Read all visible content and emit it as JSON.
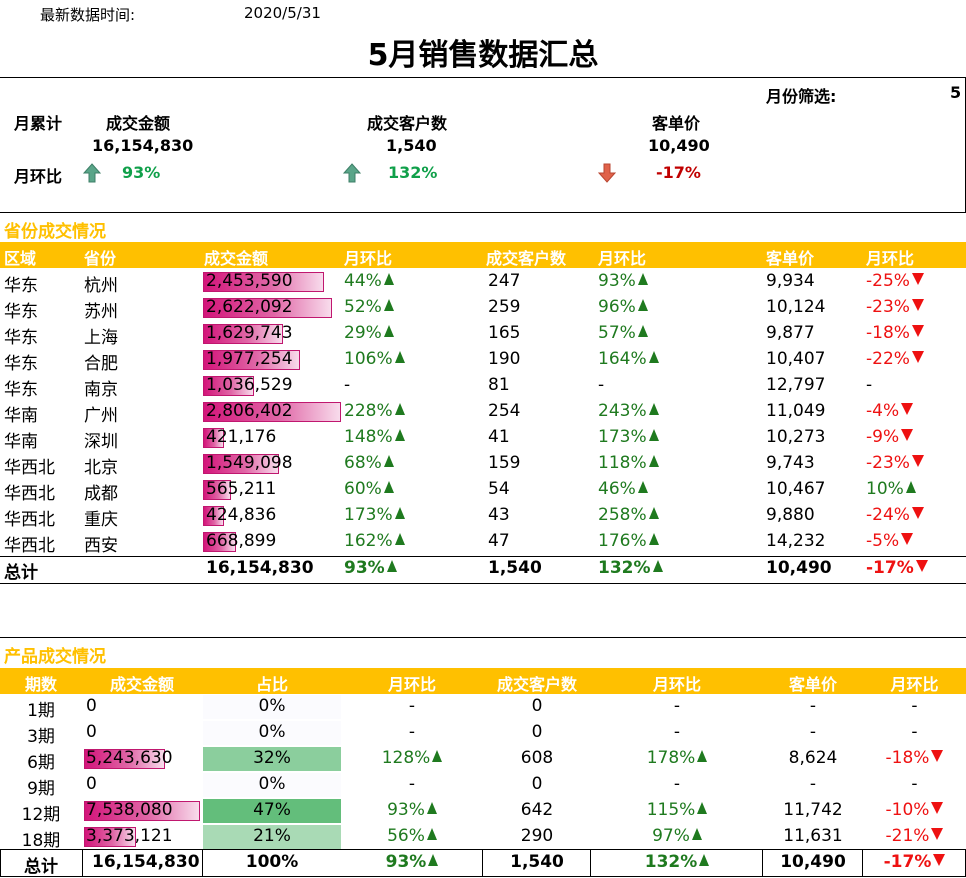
{
  "header": {
    "update_label": "最新数据时间:",
    "update_date": "2020/5/31",
    "title": "5月销售数据汇总",
    "month_filter_label": "月份筛选:",
    "month_filter_value": "5"
  },
  "kpi": {
    "cumulative_label": "月累计",
    "mom_label": "月环比",
    "amount": {
      "label": "成交金额",
      "value": "16,154,830",
      "mom": "93%",
      "trend": "up"
    },
    "customers": {
      "label": "成交客户数",
      "value": "1,540",
      "mom": "132%",
      "trend": "up"
    },
    "per_customer": {
      "label": "客单价",
      "value": "10,490",
      "mom": "-17%",
      "trend": "down"
    }
  },
  "colors": {
    "accent": "#ffc000",
    "bar": "#d3157a",
    "up": "#1f7a1f",
    "down": "#ee1111",
    "kpi_up": "#10a04a",
    "kpi_down": "#c00000",
    "share_bar": "#63be7b"
  },
  "province": {
    "title": "省份成交情况",
    "headers": [
      "区域",
      "省份",
      "成交金额",
      "月环比",
      "成交客户数",
      "月环比",
      "客单价",
      "月环比"
    ],
    "max_amount": 2806402,
    "rows": [
      {
        "region": "华东",
        "province": "杭州",
        "amount": "2,453,590",
        "amount_num": 2453590,
        "amount_mom": "44%",
        "amount_mom_trend": "up",
        "customers": "247",
        "customers_mom": "93%",
        "customers_mom_trend": "up",
        "per": "9,934",
        "per_mom": "-25%",
        "per_mom_trend": "down"
      },
      {
        "region": "华东",
        "province": "苏州",
        "amount": "2,622,092",
        "amount_num": 2622092,
        "amount_mom": "52%",
        "amount_mom_trend": "up",
        "customers": "259",
        "customers_mom": "96%",
        "customers_mom_trend": "up",
        "per": "10,124",
        "per_mom": "-23%",
        "per_mom_trend": "down"
      },
      {
        "region": "华东",
        "province": "上海",
        "amount": "1,629,743",
        "amount_num": 1629743,
        "amount_mom": "29%",
        "amount_mom_trend": "up",
        "customers": "165",
        "customers_mom": "57%",
        "customers_mom_trend": "up",
        "per": "9,877",
        "per_mom": "-18%",
        "per_mom_trend": "down"
      },
      {
        "region": "华东",
        "province": "合肥",
        "amount": "1,977,254",
        "amount_num": 1977254,
        "amount_mom": "106%",
        "amount_mom_trend": "up",
        "customers": "190",
        "customers_mom": "164%",
        "customers_mom_trend": "up",
        "per": "10,407",
        "per_mom": "-22%",
        "per_mom_trend": "down"
      },
      {
        "region": "华东",
        "province": "南京",
        "amount": "1,036,529",
        "amount_num": 1036529,
        "amount_mom": "-",
        "amount_mom_trend": "none",
        "customers": "81",
        "customers_mom": "-",
        "customers_mom_trend": "none",
        "per": "12,797",
        "per_mom": "-",
        "per_mom_trend": "none"
      },
      {
        "region": "华南",
        "province": "广州",
        "amount": "2,806,402",
        "amount_num": 2806402,
        "amount_mom": "228%",
        "amount_mom_trend": "up",
        "customers": "254",
        "customers_mom": "243%",
        "customers_mom_trend": "up",
        "per": "11,049",
        "per_mom": "-4%",
        "per_mom_trend": "down"
      },
      {
        "region": "华南",
        "province": "深圳",
        "amount": "421,176",
        "amount_num": 421176,
        "amount_mom": "148%",
        "amount_mom_trend": "up",
        "customers": "41",
        "customers_mom": "173%",
        "customers_mom_trend": "up",
        "per": "10,273",
        "per_mom": "-9%",
        "per_mom_trend": "down"
      },
      {
        "region": "华西北",
        "province": "北京",
        "amount": "1,549,098",
        "amount_num": 1549098,
        "amount_mom": "68%",
        "amount_mom_trend": "up",
        "customers": "159",
        "customers_mom": "118%",
        "customers_mom_trend": "up",
        "per": "9,743",
        "per_mom": "-23%",
        "per_mom_trend": "down"
      },
      {
        "region": "华西北",
        "province": "成都",
        "amount": "565,211",
        "amount_num": 565211,
        "amount_mom": "60%",
        "amount_mom_trend": "up",
        "customers": "54",
        "customers_mom": "46%",
        "customers_mom_trend": "up",
        "per": "10,467",
        "per_mom": "10%",
        "per_mom_trend": "up"
      },
      {
        "region": "华西北",
        "province": "重庆",
        "amount": "424,836",
        "amount_num": 424836,
        "amount_mom": "173%",
        "amount_mom_trend": "up",
        "customers": "43",
        "customers_mom": "258%",
        "customers_mom_trend": "up",
        "per": "9,880",
        "per_mom": "-24%",
        "per_mom_trend": "down"
      },
      {
        "region": "华西北",
        "province": "西安",
        "amount": "668,899",
        "amount_num": 668899,
        "amount_mom": "162%",
        "amount_mom_trend": "up",
        "customers": "47",
        "customers_mom": "176%",
        "customers_mom_trend": "up",
        "per": "14,232",
        "per_mom": "-5%",
        "per_mom_trend": "down"
      }
    ],
    "total": {
      "label": "总计",
      "amount": "16,154,830",
      "amount_mom": "93%",
      "amount_mom_trend": "up",
      "customers": "1,540",
      "customers_mom": "132%",
      "customers_mom_trend": "up",
      "per": "10,490",
      "per_mom": "-17%",
      "per_mom_trend": "down"
    }
  },
  "product": {
    "title": "产品成交情况",
    "headers": [
      "期数",
      "成交金额",
      "占比",
      "月环比",
      "成交客户数",
      "月环比",
      "客单价",
      "月环比"
    ],
    "max_amount": 7538080,
    "rows": [
      {
        "period": "1期",
        "amount": "0",
        "amount_num": 0,
        "share": "0%",
        "share_num": 0,
        "amount_mom": "-",
        "amount_mom_trend": "none",
        "customers": "0",
        "customers_mom": "-",
        "customers_mom_trend": "none",
        "per": "-",
        "per_mom": "-",
        "per_mom_trend": "none"
      },
      {
        "period": "3期",
        "amount": "0",
        "amount_num": 0,
        "share": "0%",
        "share_num": 0,
        "amount_mom": "-",
        "amount_mom_trend": "none",
        "customers": "0",
        "customers_mom": "-",
        "customers_mom_trend": "none",
        "per": "-",
        "per_mom": "-",
        "per_mom_trend": "none"
      },
      {
        "period": "6期",
        "amount": "5,243,630",
        "amount_num": 5243630,
        "share": "32%",
        "share_num": 0.32,
        "amount_mom": "128%",
        "amount_mom_trend": "up",
        "customers": "608",
        "customers_mom": "178%",
        "customers_mom_trend": "up",
        "per": "8,624",
        "per_mom": "-18%",
        "per_mom_trend": "down"
      },
      {
        "period": "9期",
        "amount": "0",
        "amount_num": 0,
        "share": "0%",
        "share_num": 0,
        "amount_mom": "-",
        "amount_mom_trend": "none",
        "customers": "0",
        "customers_mom": "-",
        "customers_mom_trend": "none",
        "per": "-",
        "per_mom": "-",
        "per_mom_trend": "none"
      },
      {
        "period": "12期",
        "amount": "7,538,080",
        "amount_num": 7538080,
        "share": "47%",
        "share_num": 0.47,
        "amount_mom": "93%",
        "amount_mom_trend": "up",
        "customers": "642",
        "customers_mom": "115%",
        "customers_mom_trend": "up",
        "per": "11,742",
        "per_mom": "-10%",
        "per_mom_trend": "down"
      },
      {
        "period": "18期",
        "amount": "3,373,121",
        "amount_num": 3373121,
        "share": "21%",
        "share_num": 0.21,
        "amount_mom": "56%",
        "amount_mom_trend": "up",
        "customers": "290",
        "customers_mom": "97%",
        "customers_mom_trend": "up",
        "per": "11,631",
        "per_mom": "-21%",
        "per_mom_trend": "down"
      }
    ],
    "total": {
      "label": "总计",
      "amount": "16,154,830",
      "share": "100%",
      "amount_mom": "93%",
      "amount_mom_trend": "up",
      "customers": "1,540",
      "customers_mom": "132%",
      "customers_mom_trend": "up",
      "per": "10,490",
      "per_mom": "-17%",
      "per_mom_trend": "down"
    }
  }
}
